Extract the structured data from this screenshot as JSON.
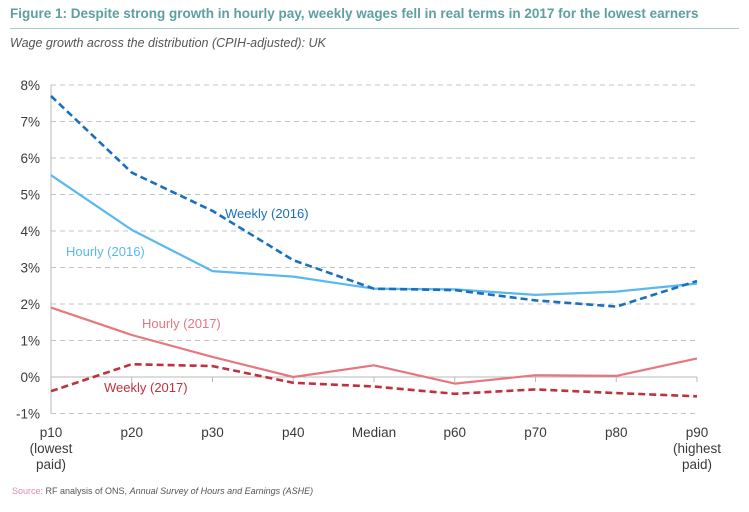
{
  "header": {
    "title": "Figure 1:   Despite strong growth in hourly pay, weekly wages fell in real terms in 2017 for the lowest earners",
    "subtitle": "Wage growth across the distribution (CPIH-adjusted): UK"
  },
  "source": {
    "label": "Source:",
    "text": " RF analysis of ONS, ",
    "italic": "Annual Survey of Hours and Earnings (ASHE)"
  },
  "colors": {
    "title": "#5e9fa0",
    "weekly_2016": "#1a6fbf",
    "hourly_2016": "#5ab8ee",
    "hourly_2017": "#e5787e",
    "weekly_2017": "#c0313f",
    "grid": "#c4c4c4",
    "axis": "#b8b8b8"
  },
  "chart_data": {
    "type": "line",
    "title": "Figure 1: Despite strong growth in hourly pay, weekly wages fell in real terms in 2017 for the lowest earners",
    "subtitle": "Wage growth across the distribution (CPIH-adjusted): UK",
    "xlabel": "",
    "ylabel": "",
    "categories": [
      "p10 (lowest paid)",
      "p20",
      "p30",
      "p40",
      "Median",
      "p60",
      "p70",
      "p80",
      "p90 (highest paid)"
    ],
    "category_lines": [
      [
        "p10",
        "(lowest",
        "paid)"
      ],
      [
        "p20"
      ],
      [
        "p30"
      ],
      [
        "p40"
      ],
      [
        "Median"
      ],
      [
        "p60"
      ],
      [
        "p70"
      ],
      [
        "p80"
      ],
      [
        "p90",
        "(highest",
        "paid)"
      ]
    ],
    "ylim": [
      -1,
      8
    ],
    "yticks": [
      8,
      7,
      6,
      5,
      4,
      3,
      2,
      1,
      0,
      -1
    ],
    "ytick_labels": [
      "8%",
      "7%",
      "6%",
      "5%",
      "4%",
      "3%",
      "2%",
      "1%",
      "0%",
      "-1%"
    ],
    "grid": true,
    "legend": "inline-labels",
    "series": [
      {
        "name": "Weekly (2016)",
        "style": "dashed",
        "color_key": "weekly_2016",
        "values": [
          7.7,
          5.6,
          4.55,
          3.2,
          2.42,
          2.38,
          2.1,
          1.93,
          2.63
        ]
      },
      {
        "name": "Hourly (2016)",
        "style": "solid",
        "color_key": "hourly_2016",
        "values": [
          5.53,
          4.03,
          2.9,
          2.75,
          2.42,
          2.4,
          2.25,
          2.34,
          2.56
        ]
      },
      {
        "name": "Hourly (2017)",
        "style": "solid",
        "color_key": "hourly_2017",
        "values": [
          1.9,
          1.15,
          0.55,
          0.0,
          0.32,
          -0.18,
          0.05,
          0.03,
          0.51
        ]
      },
      {
        "name": "Weekly (2017)",
        "style": "dashed",
        "color_key": "weekly_2017",
        "values": [
          -0.39,
          0.35,
          0.3,
          -0.16,
          -0.26,
          -0.46,
          -0.34,
          -0.44,
          -0.53
        ]
      }
    ]
  }
}
